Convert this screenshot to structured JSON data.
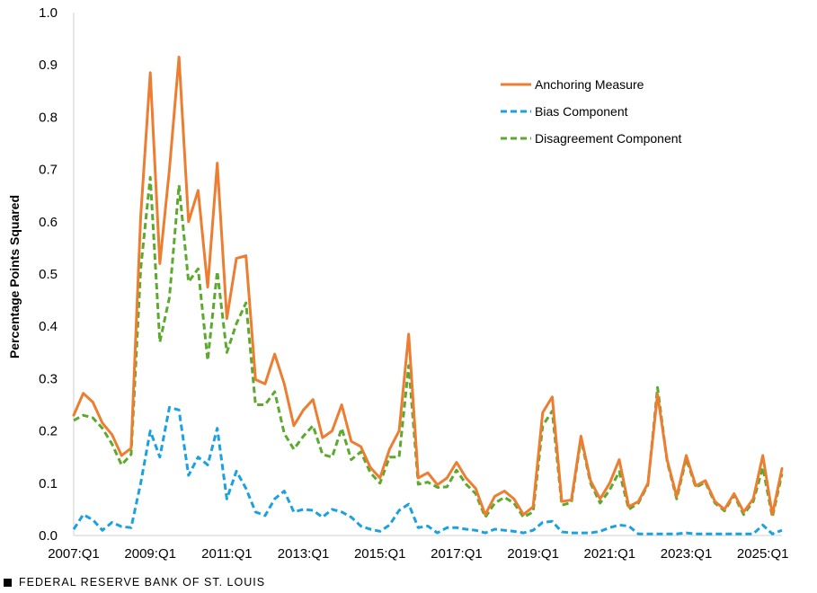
{
  "chart_data": {
    "type": "line",
    "ylabel": "Percentage Points Squared",
    "ylim": [
      0,
      1.0
    ],
    "yticks": [
      "0.0",
      "0.1",
      "0.2",
      "0.3",
      "0.4",
      "0.5",
      "0.6",
      "0.7",
      "0.8",
      "0.9",
      "1.0"
    ],
    "xticks": [
      "2007:Q1",
      "2009:Q1",
      "2011:Q1",
      "2013:Q1",
      "2015:Q1",
      "2017:Q1",
      "2019:Q1",
      "2021:Q1",
      "2023:Q1",
      "2025:Q1"
    ],
    "x_start": "2007:Q1",
    "x_end": "2025:Q2",
    "grid": false,
    "legend_position": "top-right",
    "series": [
      {
        "name": "Anchoring Measure",
        "color": "#ED7D31",
        "style": "solid",
        "values": [
          0.23,
          0.272,
          0.255,
          0.215,
          0.193,
          0.153,
          0.167,
          0.61,
          0.885,
          0.52,
          0.7,
          0.915,
          0.6,
          0.66,
          0.475,
          0.712,
          0.415,
          0.53,
          0.535,
          0.298,
          0.29,
          0.347,
          0.29,
          0.21,
          0.24,
          0.26,
          0.187,
          0.2,
          0.25,
          0.18,
          0.17,
          0.13,
          0.11,
          0.165,
          0.2,
          0.385,
          0.11,
          0.12,
          0.097,
          0.11,
          0.14,
          0.11,
          0.09,
          0.04,
          0.075,
          0.085,
          0.07,
          0.04,
          0.055,
          0.235,
          0.265,
          0.065,
          0.068,
          0.19,
          0.105,
          0.07,
          0.1,
          0.145,
          0.055,
          0.065,
          0.1,
          0.27,
          0.145,
          0.075,
          0.153,
          0.095,
          0.105,
          0.065,
          0.05,
          0.08,
          0.045,
          0.07,
          0.153,
          0.04,
          0.128
        ]
      },
      {
        "name": "Bias Component",
        "color": "#1BA1E2",
        "style": "dashed",
        "values": [
          0.012,
          0.04,
          0.03,
          0.01,
          0.025,
          0.017,
          0.015,
          0.1,
          0.2,
          0.15,
          0.245,
          0.24,
          0.115,
          0.15,
          0.135,
          0.205,
          0.07,
          0.123,
          0.09,
          0.045,
          0.038,
          0.07,
          0.085,
          0.045,
          0.05,
          0.048,
          0.035,
          0.05,
          0.045,
          0.035,
          0.018,
          0.012,
          0.008,
          0.02,
          0.048,
          0.06,
          0.015,
          0.018,
          0.005,
          0.015,
          0.015,
          0.012,
          0.01,
          0.005,
          0.012,
          0.01,
          0.008,
          0.005,
          0.01,
          0.025,
          0.027,
          0.007,
          0.005,
          0.005,
          0.005,
          0.008,
          0.015,
          0.02,
          0.018,
          0.003,
          0.003,
          0.003,
          0.003,
          0.003,
          0.005,
          0.003,
          0.003,
          0.003,
          0.003,
          0.003,
          0.003,
          0.003,
          0.02,
          0.003,
          0.01
        ]
      },
      {
        "name": "Disagreement Component",
        "color": "#5BAA2E",
        "style": "dashed",
        "values": [
          0.22,
          0.23,
          0.225,
          0.205,
          0.175,
          0.135,
          0.155,
          0.51,
          0.685,
          0.37,
          0.455,
          0.67,
          0.485,
          0.51,
          0.335,
          0.505,
          0.35,
          0.405,
          0.445,
          0.25,
          0.25,
          0.275,
          0.195,
          0.165,
          0.19,
          0.21,
          0.155,
          0.15,
          0.205,
          0.145,
          0.16,
          0.12,
          0.1,
          0.15,
          0.15,
          0.325,
          0.098,
          0.102,
          0.092,
          0.093,
          0.125,
          0.098,
          0.08,
          0.035,
          0.062,
          0.073,
          0.062,
          0.035,
          0.045,
          0.21,
          0.238,
          0.058,
          0.063,
          0.185,
          0.1,
          0.062,
          0.087,
          0.122,
          0.05,
          0.062,
          0.097,
          0.283,
          0.142,
          0.07,
          0.147,
          0.092,
          0.102,
          0.062,
          0.047,
          0.077,
          0.04,
          0.065,
          0.13,
          0.035,
          0.118
        ]
      }
    ]
  },
  "footer_text": "FEDERAL RESERVE BANK OF ST. LOUIS"
}
